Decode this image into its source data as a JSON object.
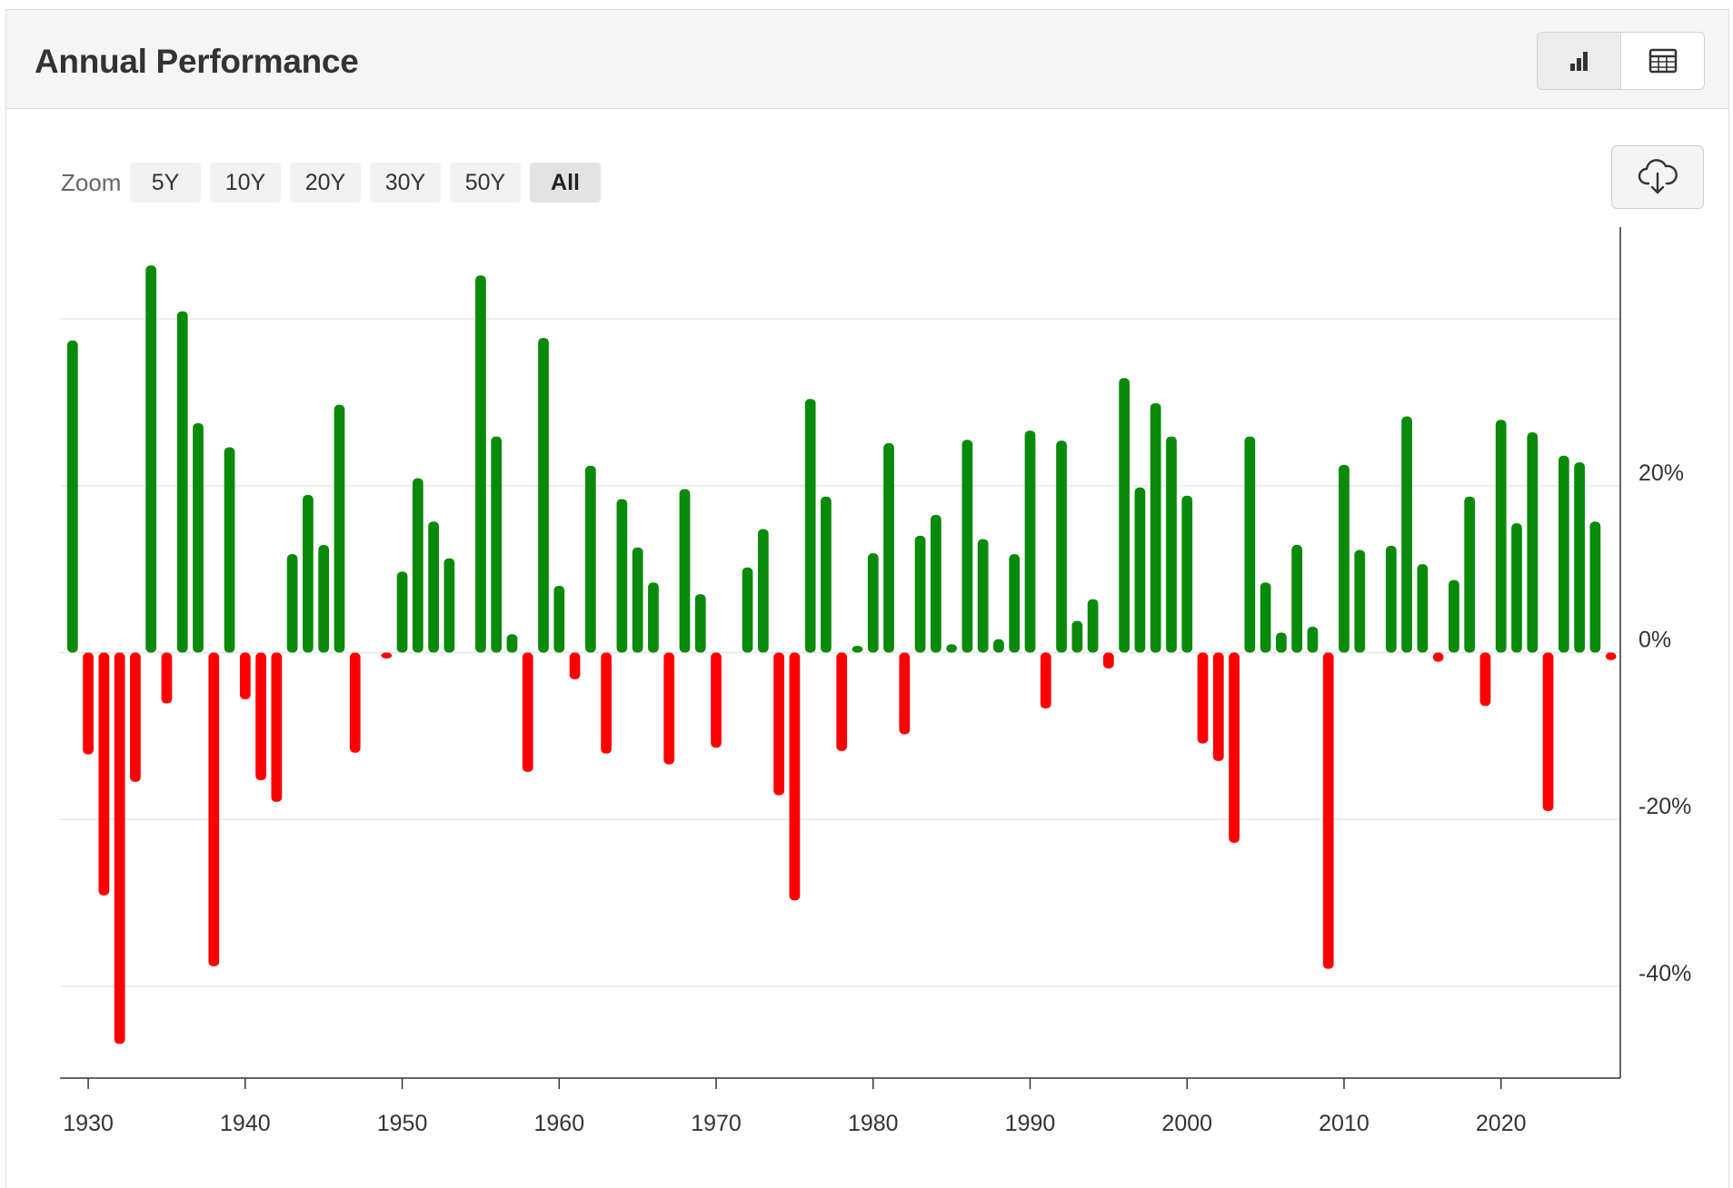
{
  "header": {
    "title": "Annual Performance",
    "views": [
      {
        "name": "chart-view",
        "icon": "bar-chart-icon",
        "active": true
      },
      {
        "name": "table-view",
        "icon": "table-icon",
        "active": false
      }
    ]
  },
  "zoom": {
    "label": "Zoom",
    "options": [
      "5Y",
      "10Y",
      "20Y",
      "30Y",
      "50Y",
      "All"
    ],
    "active": "All"
  },
  "download": {
    "icon": "cloud-download-icon"
  },
  "colors": {
    "positive": "#0a8a0a",
    "negative": "#ff0000",
    "grid": "#e6e6e6",
    "axis": "#333333"
  },
  "chart_data": {
    "type": "bar",
    "title": "",
    "xlabel": "",
    "ylabel": "",
    "ylim": [
      -51,
      51
    ],
    "y_ticks": [
      {
        "value": 20,
        "label": "20%"
      },
      {
        "value": 0,
        "label": "0%"
      },
      {
        "value": -20,
        "label": "-20%"
      },
      {
        "value": -40,
        "label": "-40%"
      }
    ],
    "x_ticks": [
      1930,
      1940,
      1950,
      1960,
      1970,
      1980,
      1990,
      2000,
      2010,
      2020
    ],
    "xlim": [
      1928.2,
      2027.6
    ],
    "grid": true,
    "y_axis_position": "right",
    "x": [
      1929,
      1930,
      1931,
      1932,
      1933,
      1934,
      1935,
      1936,
      1937,
      1938,
      1939,
      1940,
      1941,
      1942,
      1943,
      1944,
      1945,
      1946,
      1947,
      1948,
      1949,
      1950,
      1951,
      1952,
      1953,
      1954,
      1955,
      1956,
      1957,
      1958,
      1959,
      1960,
      1961,
      1962,
      1963,
      1964,
      1965,
      1966,
      1967,
      1968,
      1969,
      1970,
      1971,
      1972,
      1973,
      1974,
      1975,
      1976,
      1977,
      1978,
      1979,
      1980,
      1981,
      1982,
      1983,
      1984,
      1985,
      1986,
      1987,
      1988,
      1989,
      1990,
      1991,
      1992,
      1993,
      1994,
      1995,
      1996,
      1997,
      1998,
      1999,
      2000,
      2001,
      2002,
      2003,
      2004,
      2005,
      2006,
      2007,
      2008,
      2009,
      2010,
      2011,
      2012,
      2013,
      2014,
      2015,
      2016,
      2017,
      2018,
      2019,
      2020,
      2021,
      2022,
      2023,
      2024,
      2025,
      2026,
      2027
    ],
    "values": [
      37.4,
      -12.2,
      -29.1,
      -46.9,
      -15.5,
      46.4,
      -6.1,
      40.9,
      27.5,
      -37.6,
      24.6,
      -5.6,
      -15.3,
      -17.9,
      11.8,
      18.9,
      12.9,
      29.7,
      -12.0,
      0.0,
      -0.7,
      9.7,
      20.9,
      15.7,
      11.3,
      0.0,
      45.2,
      25.9,
      2.2,
      -14.3,
      37.7,
      8.0,
      -3.2,
      22.4,
      -12.1,
      18.4,
      12.6,
      8.4,
      -13.4,
      19.6,
      7.0,
      -11.4,
      0.0,
      10.2,
      14.8,
      -17.1,
      -29.7,
      30.4,
      18.7,
      -11.8,
      0.8,
      11.9,
      25.1,
      -9.8,
      14.0,
      16.5,
      1.0,
      25.5,
      13.6,
      1.6,
      11.8,
      26.6,
      -6.7,
      25.4,
      3.8,
      6.4,
      -1.9,
      32.9,
      19.8,
      29.9,
      25.9,
      18.8,
      -10.9,
      -13.0,
      -22.8,
      25.9,
      8.4,
      2.4,
      12.9,
      3.1,
      -37.9,
      22.5,
      12.3,
      0.0,
      12.8,
      28.3,
      10.6,
      -1.1,
      8.7,
      18.7,
      -6.4,
      27.9,
      15.5,
      26.4,
      -19.0,
      23.6,
      22.8,
      15.7,
      -0.9
    ]
  }
}
